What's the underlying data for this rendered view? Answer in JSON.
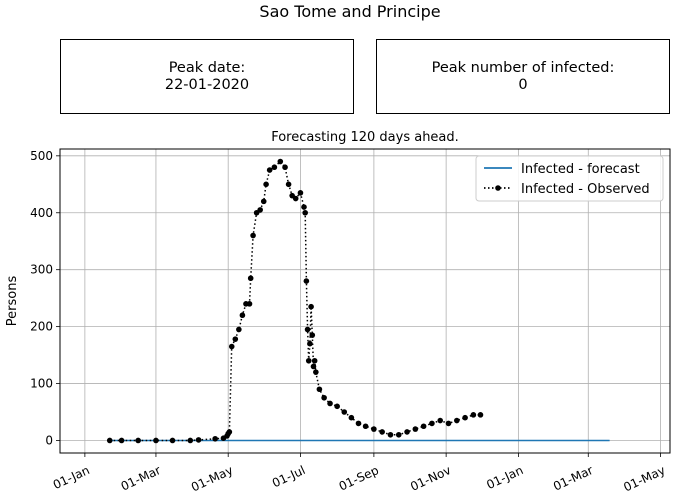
{
  "page": {
    "title": "Sao Tome and Principe"
  },
  "peak_date_box": {
    "label": "Peak date:",
    "value": "22-01-2020"
  },
  "peak_count_box": {
    "label": "Peak number of infected:",
    "value": "0"
  },
  "colors": {
    "forecast": "#1f77b4",
    "observed": "#000000",
    "grid": "#b0b0b0"
  },
  "chart_data": {
    "type": "line",
    "title": "Forecasting 120 days ahead.",
    "xlabel": "",
    "ylabel": "Persons",
    "x_ticks": [
      "01-Jan",
      "01-Mar",
      "01-May",
      "01-Jul",
      "01-Sep",
      "01-Nov",
      "01-Jan",
      "01-Mar",
      "01-May"
    ],
    "y_ticks": [
      0,
      100,
      200,
      300,
      400,
      500
    ],
    "xlim": [
      "2019-12-11",
      "2021-05-09"
    ],
    "ylim": [
      -22,
      512
    ],
    "grid": true,
    "legend_position": "top-right",
    "legend": [
      "Infected - forecast",
      "Infected - Observed"
    ],
    "series": [
      {
        "name": "Infected - forecast",
        "style": "solid",
        "x": [
          "2020-01-22",
          "2021-03-19"
        ],
        "y": [
          0,
          0
        ]
      },
      {
        "name": "Infected - Observed",
        "style": "dotted-markers",
        "x": [
          "2020-01-22",
          "2020-02-01",
          "2020-02-15",
          "2020-03-01",
          "2020-03-15",
          "2020-03-30",
          "2020-04-06",
          "2020-04-20",
          "2020-04-27",
          "2020-04-30",
          "2020-05-01",
          "2020-05-02",
          "2020-05-04",
          "2020-05-07",
          "2020-05-10",
          "2020-05-13",
          "2020-05-16",
          "2020-05-19",
          "2020-05-20",
          "2020-05-22",
          "2020-05-25",
          "2020-05-28",
          "2020-05-31",
          "2020-06-02",
          "2020-06-05",
          "2020-06-09",
          "2020-06-14",
          "2020-06-18",
          "2020-06-21",
          "2020-06-24",
          "2020-06-27",
          "2020-07-01",
          "2020-07-04",
          "2020-07-05",
          "2020-07-06",
          "2020-07-07",
          "2020-07-08",
          "2020-07-09",
          "2020-07-10",
          "2020-07-11",
          "2020-07-12",
          "2020-07-13",
          "2020-07-14",
          "2020-07-17",
          "2020-07-21",
          "2020-07-26",
          "2020-08-01",
          "2020-08-07",
          "2020-08-13",
          "2020-08-19",
          "2020-08-25",
          "2020-09-01",
          "2020-09-08",
          "2020-09-15",
          "2020-09-22",
          "2020-09-29",
          "2020-10-06",
          "2020-10-13",
          "2020-10-20",
          "2020-10-27",
          "2020-11-03",
          "2020-11-10",
          "2020-11-17",
          "2020-11-24",
          "2020-11-30"
        ],
        "y": [
          0,
          0,
          0,
          0,
          0,
          0,
          1,
          3,
          4,
          8,
          12,
          15,
          165,
          178,
          195,
          220,
          240,
          240,
          285,
          360,
          400,
          405,
          420,
          450,
          475,
          480,
          490,
          480,
          450,
          430,
          425,
          435,
          410,
          400,
          280,
          195,
          140,
          170,
          235,
          185,
          130,
          140,
          120,
          90,
          75,
          65,
          60,
          50,
          40,
          30,
          25,
          20,
          15,
          10,
          10,
          15,
          20,
          25,
          30,
          35,
          30,
          35,
          40,
          45,
          45
        ]
      }
    ]
  }
}
